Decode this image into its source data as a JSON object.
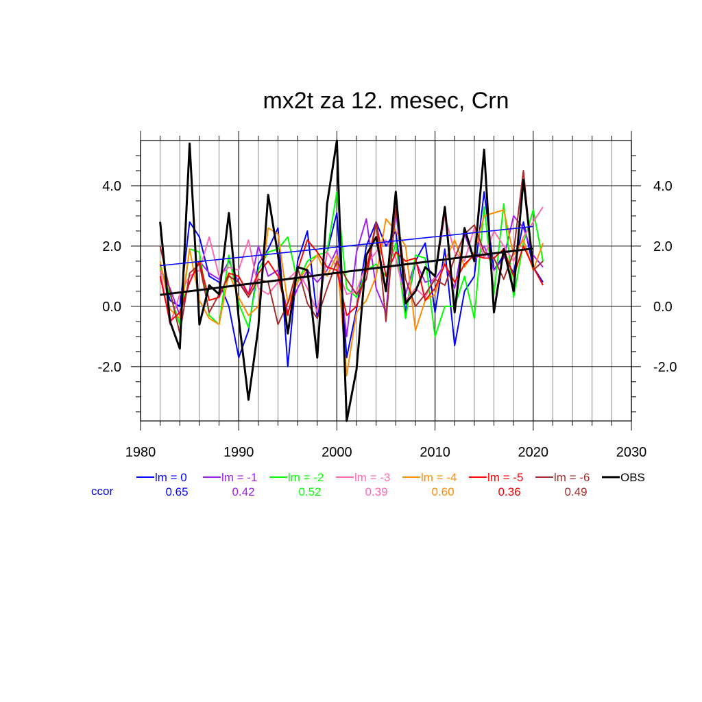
{
  "chart_data": {
    "type": "line",
    "title": "mx2t za 12. mesec, Crn",
    "xlabel": "",
    "ylabel": "",
    "xlim": [
      1980,
      2030
    ],
    "ylim": [
      -3.8,
      5.5
    ],
    "x_ticks": [
      "1980",
      "1990",
      "2000",
      "2010",
      "2020",
      "2030"
    ],
    "y_ticks": [
      "4.0",
      "2.0",
      "0.0",
      "-2.0"
    ],
    "grid": true,
    "legend_position": "bottom",
    "ccor_label": "ccor",
    "series": [
      {
        "name": "lm = 0",
        "color": "#0000ff",
        "ccor": "0.65",
        "trend": [
          1.35,
          2.65
        ],
        "x": [
          1982,
          1983,
          1984,
          1985,
          1986,
          1987,
          1988,
          1989,
          1990,
          1991,
          1992,
          1993,
          1994,
          1995,
          1996,
          1997,
          1998,
          1999,
          2000,
          2001,
          2002,
          2003,
          2004,
          2005,
          2006,
          2007,
          2008,
          2009,
          2010,
          2011,
          2012,
          2013,
          2014,
          2015,
          2016,
          2017,
          2018,
          2019,
          2020,
          2021
        ],
        "values": [
          1.4,
          0.2,
          0.0,
          2.8,
          2.3,
          1.0,
          0.8,
          0.0,
          -1.7,
          -0.8,
          1.4,
          1.9,
          2.6,
          -2.0,
          1.5,
          2.5,
          -0.4,
          1.8,
          3.1,
          -1.7,
          -0.1,
          2.0,
          2.8,
          2.0,
          2.5,
          -0.2,
          1.5,
          2.1,
          -0.2,
          1.9,
          -1.3,
          0.5,
          1.0,
          3.8,
          1.2,
          1.7,
          1.1,
          2.8,
          1.3,
          0.8
        ]
      },
      {
        "name": "lm = -1",
        "color": "#a020f0",
        "ccor": "0.42",
        "trend": null,
        "x": [
          1982,
          1983,
          1984,
          1985,
          1986,
          1987,
          1988,
          1989,
          1990,
          1991,
          1992,
          1993,
          1994,
          1995,
          1996,
          1997,
          1998,
          1999,
          2000,
          2001,
          2002,
          2003,
          2004,
          2005,
          2006,
          2007,
          2008,
          2009,
          2010,
          2011,
          2012,
          2013,
          2014,
          2015,
          2016,
          2017,
          2018,
          2019,
          2020,
          2021
        ],
        "values": [
          1.2,
          0.6,
          -0.3,
          0.8,
          1.5,
          1.1,
          0.9,
          1.5,
          0.8,
          0.4,
          2.0,
          1.0,
          1.2,
          -0.2,
          0.6,
          1.2,
          0.8,
          1.2,
          1.9,
          -1.0,
          1.8,
          2.9,
          0.6,
          -0.2,
          3.2,
          0.4,
          1.5,
          0.8,
          0.9,
          1.4,
          0.6,
          2.4,
          1.5,
          2.0,
          1.2,
          1.6,
          3.0,
          2.6,
          1.7,
          1.3
        ]
      },
      {
        "name": "lm = -2",
        "color": "#00ff00",
        "ccor": "0.52",
        "trend": null,
        "x": [
          1982,
          1983,
          1984,
          1985,
          1986,
          1987,
          1988,
          1989,
          1990,
          1991,
          1992,
          1993,
          1994,
          1995,
          1996,
          1997,
          1998,
          1999,
          2000,
          2001,
          2002,
          2003,
          2004,
          2005,
          2006,
          2007,
          2008,
          2009,
          2010,
          2011,
          2012,
          2013,
          2014,
          2015,
          2016,
          2017,
          2018,
          2019,
          2020,
          2021
        ],
        "values": [
          1.3,
          0.4,
          -0.6,
          1.9,
          1.8,
          -0.3,
          -0.6,
          1.7,
          0.1,
          -0.7,
          1.2,
          1.8,
          1.9,
          2.3,
          0.8,
          1.5,
          1.7,
          1.8,
          3.8,
          0.6,
          0.3,
          1.2,
          1.4,
          1.0,
          2.1,
          -0.4,
          1.7,
          1.6,
          -1.0,
          0.0,
          0.0,
          1.0,
          -0.4,
          3.3,
          0.4,
          3.4,
          0.3,
          2.1,
          3.2,
          1.5
        ]
      },
      {
        "name": "lm = -3",
        "color": "#ff69b4",
        "ccor": "0.39",
        "trend": null,
        "x": [
          1982,
          1983,
          1984,
          1985,
          1986,
          1987,
          1988,
          1989,
          1990,
          1991,
          1992,
          1993,
          1994,
          1995,
          1996,
          1997,
          1998,
          1999,
          2000,
          2001,
          2002,
          2003,
          2004,
          2005,
          2006,
          2007,
          2008,
          2009,
          2010,
          2011,
          2012,
          2013,
          2014,
          2015,
          2016,
          2017,
          2018,
          2019,
          2020,
          2021
        ],
        "values": [
          1.2,
          -0.6,
          0.4,
          1.0,
          1.2,
          2.3,
          1.0,
          1.3,
          1.2,
          2.2,
          0.6,
          0.4,
          0.8,
          0.9,
          1.2,
          0.6,
          -0.2,
          1.8,
          1.3,
          0.4,
          0.5,
          1.4,
          1.8,
          2.2,
          1.6,
          0.2,
          0.6,
          0.3,
          1.0,
          3.0,
          1.8,
          1.5,
          2.6,
          1.6,
          2.5,
          2.0,
          1.5,
          2.3,
          2.8,
          3.3
        ]
      },
      {
        "name": "lm = -4",
        "color": "#ff8c00",
        "ccor": "0.60",
        "trend": null,
        "x": [
          1982,
          1983,
          1984,
          1985,
          1986,
          1987,
          1988,
          1989,
          1990,
          1991,
          1992,
          1993,
          1994,
          1995,
          1996,
          1997,
          1998,
          1999,
          2000,
          2001,
          2002,
          2003,
          2004,
          2005,
          2006,
          2007,
          2008,
          2009,
          2010,
          2011,
          2012,
          2013,
          2014,
          2015,
          2016,
          2017,
          2018,
          2019,
          2020,
          2021
        ],
        "values": [
          1.5,
          -0.1,
          -0.4,
          1.9,
          0.2,
          -0.4,
          -0.6,
          1.1,
          0.3,
          -0.3,
          0.0,
          2.6,
          2.4,
          0.1,
          0.8,
          1.3,
          1.7,
          1.0,
          1.7,
          -2.3,
          -0.2,
          0.2,
          1.0,
          2.9,
          2.5,
          2.0,
          -0.8,
          0.2,
          0.4,
          1.5,
          2.2,
          1.3,
          1.8,
          3.0,
          3.1,
          3.2,
          1.7,
          2.2,
          1.2,
          2.1
        ]
      },
      {
        "name": "lm = -5",
        "color": "#ff0000",
        "ccor": "0.36",
        "trend": null,
        "x": [
          1982,
          1983,
          1984,
          1985,
          1986,
          1987,
          1988,
          1989,
          1990,
          1991,
          1992,
          1993,
          1994,
          1995,
          1996,
          1997,
          1998,
          1999,
          2000,
          2001,
          2002,
          2003,
          2004,
          2005,
          2006,
          2007,
          2008,
          2009,
          2010,
          2011,
          2012,
          2013,
          2014,
          2015,
          2016,
          2017,
          2018,
          2019,
          2020,
          2021
        ],
        "values": [
          1.0,
          -0.5,
          -0.2,
          0.8,
          1.5,
          0.2,
          0.3,
          1.1,
          1.0,
          0.4,
          1.1,
          1.5,
          1.0,
          -0.3,
          1.2,
          2.2,
          1.8,
          1.3,
          1.2,
          -0.3,
          0.0,
          1.2,
          2.8,
          1.0,
          1.8,
          1.5,
          1.6,
          0.2,
          0.6,
          1.4,
          0.8,
          1.4,
          1.7,
          1.6,
          1.6,
          1.9,
          1.0,
          2.0,
          1.3,
          0.7
        ]
      },
      {
        "name": "lm = -6",
        "color": "#a52a2a",
        "ccor": "0.49",
        "trend": null,
        "x": [
          1982,
          1983,
          1984,
          1985,
          1986,
          1987,
          1988,
          1989,
          1990,
          1991,
          1992,
          1993,
          1994,
          1995,
          1996,
          1997,
          1998,
          1999,
          2000,
          2001,
          2002,
          2003,
          2004,
          2005,
          2006,
          2007,
          2008,
          2009,
          2010,
          2011,
          2012,
          2013,
          2014,
          2015,
          2016,
          2017,
          2018,
          2019,
          2020,
          2021
        ],
        "values": [
          2.0,
          0.5,
          -0.9,
          1.1,
          1.4,
          -0.2,
          0.4,
          1.0,
          0.8,
          0.3,
          0.9,
          0.8,
          -0.6,
          0.1,
          1.3,
          0.1,
          -0.4,
          0.6,
          1.5,
          0.9,
          0.4,
          0.9,
          2.8,
          -0.5,
          3.3,
          0.9,
          0.0,
          0.4,
          0.9,
          0.7,
          1.6,
          2.4,
          2.7,
          1.8,
          1.6,
          0.9,
          1.8,
          4.5,
          1.2,
          1.5
        ]
      },
      {
        "name": "OBS",
        "color": "#000000",
        "ccor": "",
        "trend": [
          0.38,
          1.92
        ],
        "x": [
          1982,
          1983,
          1984,
          1985,
          1986,
          1987,
          1988,
          1989,
          1990,
          1991,
          1992,
          1993,
          1994,
          1995,
          1996,
          1997,
          1998,
          1999,
          2000,
          2001,
          2002,
          2003,
          2004,
          2005,
          2006,
          2007,
          2008,
          2009,
          2010,
          2011,
          2012,
          2013,
          2014,
          2015,
          2016,
          2017,
          2018,
          2019,
          2020
        ],
        "values": [
          2.8,
          -0.5,
          -1.4,
          5.4,
          -0.6,
          0.7,
          0.4,
          3.1,
          -0.4,
          -3.1,
          -0.7,
          3.7,
          1.7,
          -0.9,
          1.3,
          1.2,
          -1.7,
          3.4,
          5.5,
          -3.8,
          -2.1,
          1.7,
          2.3,
          0.5,
          3.8,
          0.1,
          0.5,
          1.3,
          1.0,
          3.3,
          -0.2,
          2.6,
          1.5,
          5.2,
          -0.2,
          1.9,
          0.5,
          4.2,
          1.3
        ]
      }
    ]
  }
}
